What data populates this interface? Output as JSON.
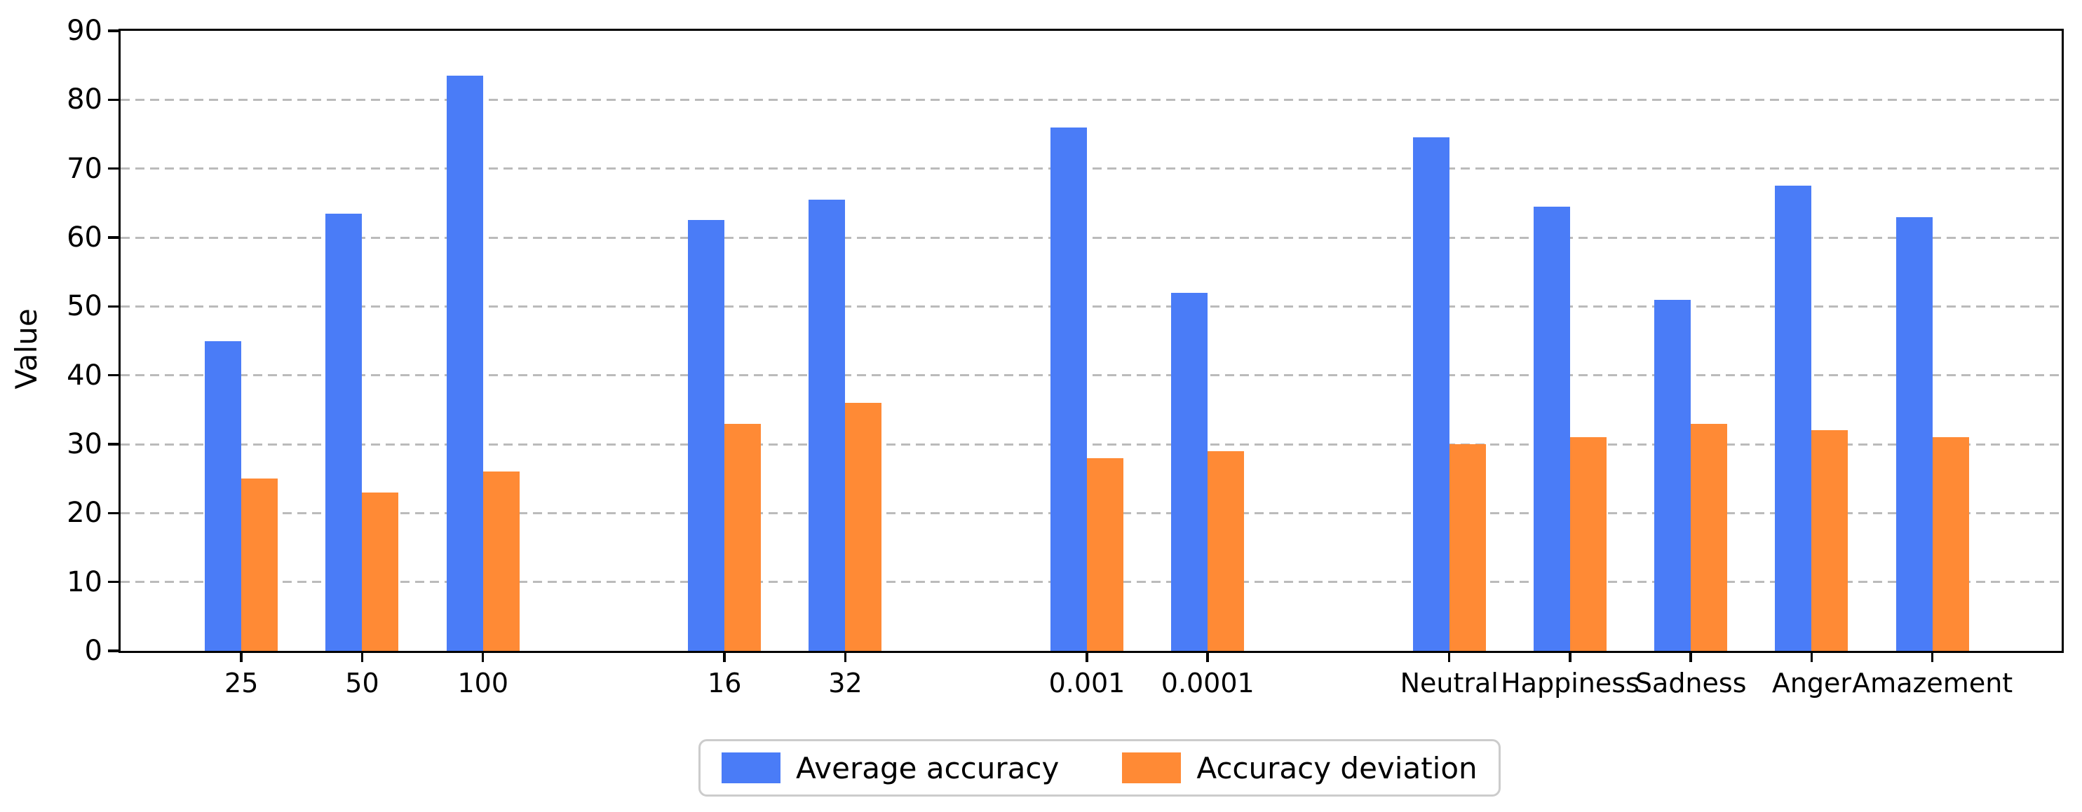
{
  "colors": {
    "blue": "#4A7CF7",
    "orange": "#FF8A35",
    "grid": "#BBBBBB",
    "spine": "#000000",
    "legend_border": "#CCCCCC"
  },
  "chart_data": {
    "type": "bar",
    "title": "",
    "xlabel": "",
    "ylabel": "Value",
    "ylim": [
      0,
      90
    ],
    "yticks": [
      0,
      10,
      20,
      30,
      40,
      50,
      60,
      70,
      80,
      90
    ],
    "grid": "horizontal-dashed",
    "legend_position": "bottom-center",
    "categories": [
      "25",
      "50",
      "100",
      "16",
      "32",
      "0.001",
      "0.0001",
      "Neutral",
      "Happiness",
      "Sadness",
      "Anger",
      "Amazement"
    ],
    "cluster_gaps_after": [
      "100",
      "32",
      "0.0001"
    ],
    "x_positions": [
      1,
      2,
      3,
      5,
      6,
      8,
      9,
      11,
      12,
      13,
      14,
      15
    ],
    "xlim": [
      0,
      16.07
    ],
    "series": [
      {
        "name": "Average accuracy",
        "color": "#4A7CF7",
        "values": [
          45,
          63.5,
          83.5,
          62.5,
          65.5,
          76,
          52,
          74.5,
          64.5,
          51,
          67.5,
          63
        ]
      },
      {
        "name": "Accuracy deviation",
        "color": "#FF8A35",
        "values": [
          25,
          23,
          26,
          33,
          36,
          28,
          29,
          30,
          31,
          33,
          32,
          31
        ]
      }
    ]
  }
}
